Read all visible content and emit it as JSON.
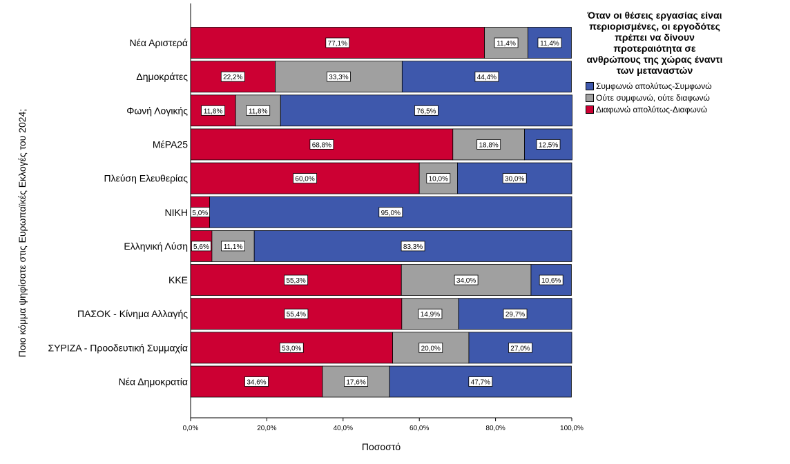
{
  "chart_data": {
    "type": "bar",
    "orientation": "horizontal",
    "stacked": true,
    "xlabel": "Ποσοστό",
    "ylabel": "Ποιο κόμμα ψηφίσατε στις Ευρωπαϊκές Εκλογές του 2024;",
    "xlim": [
      0,
      100
    ],
    "xticks": [
      "0,0%",
      "20,0%",
      "40,0%",
      "60,0%",
      "80,0%",
      "100,0%"
    ],
    "grid": false,
    "legend_placement": "right",
    "legend_title": "Όταν οι θέσεις εργασίας είναι περιορισμένες, οι εργοδότες πρέπει να δίνουν προτεραιότητα σε ανθρώπους της χώρας έναντι των μεταναστών",
    "categories": [
      "Νέα Αριστερά",
      "Δημοκράτες",
      "Φωνή Λογικής",
      "ΜέΡΑ25",
      "Πλεύση Ελευθερίας",
      "ΝΙΚΗ",
      "Ελληνική Λύση",
      "ΚΚΕ",
      "ΠΑΣΟΚ - Κίνημα Αλλαγής",
      "ΣΥΡΙΖΑ - Προοδευτική Συμμαχία",
      "Νέα Δημοκρατία"
    ],
    "series": [
      {
        "name": "Διαφωνώ απολύτως-Διαφωνώ",
        "color": "#cc0033",
        "values": [
          77.1,
          22.2,
          11.8,
          68.8,
          60.0,
          5.0,
          5.6,
          55.3,
          55.4,
          53.0,
          34.6
        ]
      },
      {
        "name": "Ούτε συμφωνώ, ούτε διαφωνώ",
        "color": "#a0a0a0",
        "values": [
          11.4,
          33.3,
          11.8,
          18.8,
          10.0,
          0,
          11.1,
          34.0,
          14.9,
          20.0,
          17.6
        ]
      },
      {
        "name": "Συμφωνώ απολύτως-Συμφωνώ",
        "color": "#3e58ac",
        "values": [
          11.4,
          44.4,
          76.5,
          12.5,
          30.0,
          95.0,
          83.3,
          10.6,
          29.7,
          27.0,
          47.7
        ]
      }
    ],
    "legend_order": [
      2,
      1,
      0
    ]
  }
}
